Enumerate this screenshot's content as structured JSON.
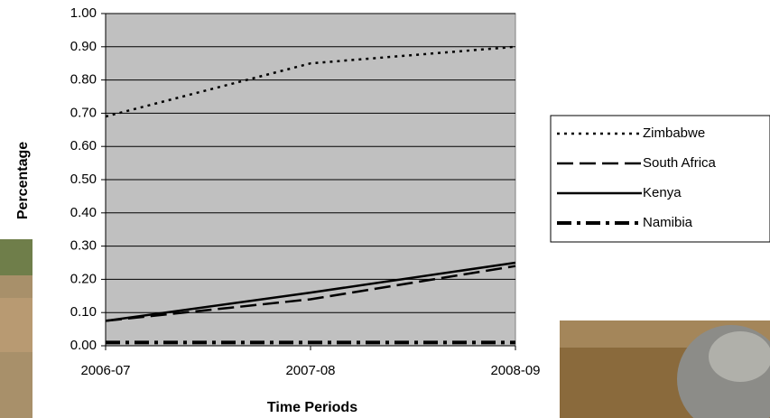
{
  "chart_data": {
    "type": "line",
    "x_label": "Time Periods",
    "y_label": "Percentage",
    "categories": [
      "2006-07",
      "2007-08",
      "2008-09"
    ],
    "series": [
      {
        "name": "Zimbabwe",
        "color": "#000000",
        "dash": "dotted",
        "values": [
          0.69,
          0.85,
          0.9
        ]
      },
      {
        "name": "South Africa",
        "color": "#000000",
        "dash": "long-dash",
        "values": [
          0.075,
          0.14,
          0.24
        ]
      },
      {
        "name": "Kenya",
        "color": "#000000",
        "dash": "solid",
        "values": [
          0.075,
          0.16,
          0.25
        ]
      },
      {
        "name": "Namibia",
        "color": "#000000",
        "dash": "dash-dot",
        "values": [
          0.01,
          0.01,
          0.01
        ]
      }
    ],
    "ylim": [
      0,
      1
    ],
    "yticks": [
      {
        "value": 0,
        "label": "0.00"
      },
      {
        "value": 0.1,
        "label": "0.10"
      },
      {
        "value": 0.2,
        "label": "0.20"
      },
      {
        "value": 0.3,
        "label": "0.30"
      },
      {
        "value": 0.4,
        "label": "0.40"
      },
      {
        "value": 0.5,
        "label": "0.50"
      },
      {
        "value": 0.6,
        "label": "0.60"
      },
      {
        "value": 0.7,
        "label": "0.70"
      },
      {
        "value": 0.8,
        "label": "0.80"
      },
      {
        "value": 0.9,
        "label": "0.90"
      },
      {
        "value": 1,
        "label": "1.00"
      }
    ],
    "grid": true,
    "plot_background": "#c0c0c0",
    "legend": "right"
  }
}
